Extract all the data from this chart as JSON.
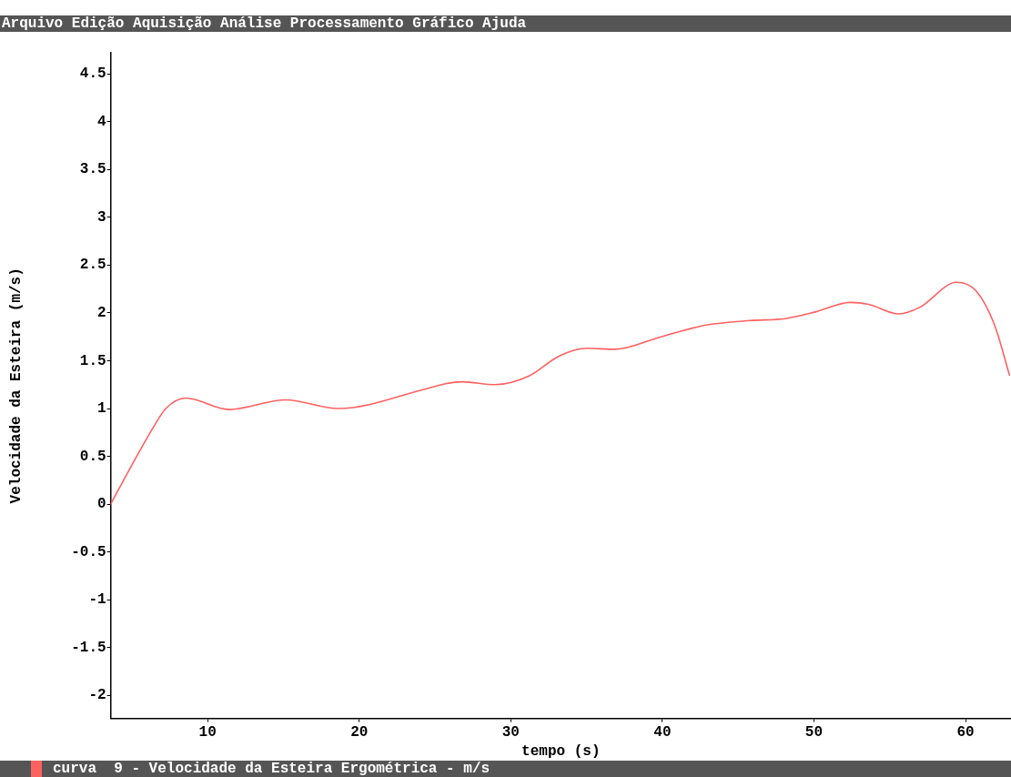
{
  "chart_data": {
    "type": "line",
    "xlabel": "tempo (s)",
    "ylabel": "Velocidade da Esteira (m/s)",
    "annotations": [
      "Arquivo",
      "Edição",
      "Aquisição",
      "Análise",
      "Processamento",
      "Gráfico",
      "Ajuda"
    ],
    "xlim": [
      3.6,
      63
    ],
    "xticks": [
      10,
      20,
      30,
      40,
      50,
      60
    ],
    "ylim": [
      -2.24,
      4.72
    ],
    "yticks": [
      -2,
      -1.5,
      -1,
      -0.5,
      0,
      0.5,
      1,
      1.5,
      2,
      2.5,
      3,
      3.5,
      4,
      4.5
    ],
    "grid": false,
    "legend": "bottom",
    "marker": "none",
    "line_style": "solid",
    "series": [
      {
        "name": "curva  9 - Velocidade da Esteira Ergométrica - m/s",
        "color": "#ff6060",
        "x": [
          3.6,
          5.0,
          6.4,
          7.24,
          8.55,
          11.4,
          15.16,
          18.6,
          24.5,
          25.7,
          26.8,
          28.97,
          31.2,
          33.2,
          35.06,
          36.9,
          39.9,
          42.8,
          45.8,
          48.1,
          50.1,
          52.4,
          53.6,
          55.6,
          57.0,
          59.4,
          60.7,
          61.9,
          62.9
        ],
        "values": [
          0,
          0.41,
          0.8,
          1.0,
          1.11,
          0.99,
          1.09,
          1.0,
          1.21,
          1.26,
          1.28,
          1.25,
          1.34,
          1.55,
          1.63,
          1.62,
          1.75,
          1.87,
          1.92,
          1.94,
          2.01,
          2.11,
          2.09,
          1.99,
          2.06,
          2.32,
          2.23,
          1.88,
          1.35
        ]
      }
    ]
  }
}
